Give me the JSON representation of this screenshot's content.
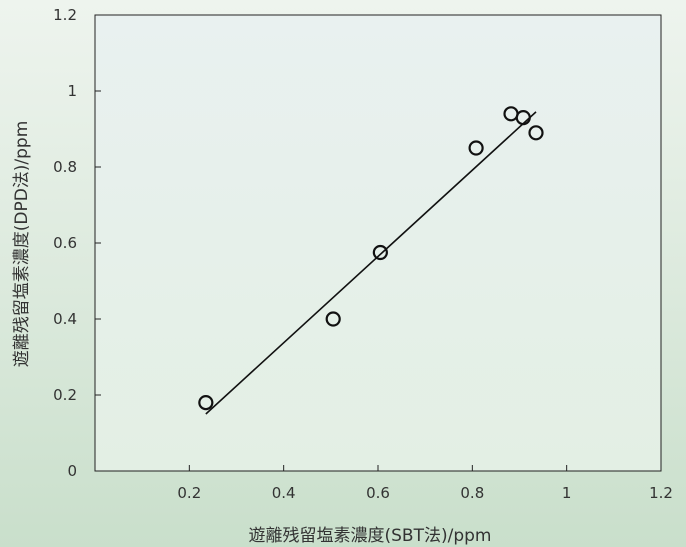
{
  "chart_data": {
    "type": "scatter",
    "xlabel": "遊離残留塩素濃度(SBT法)/ppm",
    "ylabel": "遊離残留塩素濃度(DPD法)/ppm",
    "xlim": [
      0,
      1.2
    ],
    "ylim": [
      0,
      1.2
    ],
    "x_ticks": [
      "0.2",
      "0.4",
      "0.6",
      "0.8",
      "1",
      "1.2"
    ],
    "y_ticks": [
      "0",
      "0.2",
      "0.4",
      "0.6",
      "0.8",
      "1",
      "1.2"
    ],
    "points": [
      {
        "x": 0.235,
        "y": 0.18
      },
      {
        "x": 0.505,
        "y": 0.4
      },
      {
        "x": 0.605,
        "y": 0.575
      },
      {
        "x": 0.808,
        "y": 0.85
      },
      {
        "x": 0.882,
        "y": 0.94
      },
      {
        "x": 0.908,
        "y": 0.93
      },
      {
        "x": 0.935,
        "y": 0.89
      }
    ],
    "trendline": {
      "x_start": 0.235,
      "y_start": 0.15,
      "x_end": 0.935,
      "y_end": 0.945
    },
    "marker": "open-circle",
    "colors": {
      "plot_bg": "#eaf2ec",
      "line": "#111111",
      "axis": "#222222",
      "text": "#333333"
    }
  }
}
